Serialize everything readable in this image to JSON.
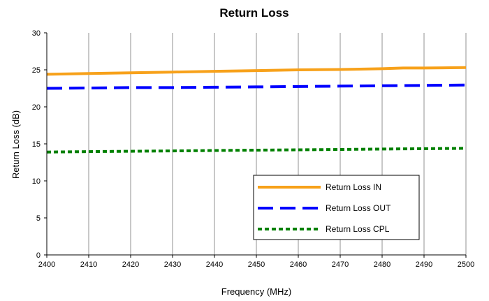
{
  "chart_data": {
    "type": "line",
    "title": "Return Loss",
    "xlabel": "Frequency (MHz)",
    "ylabel": "Return Loss (dB)",
    "xlim": [
      2400,
      2500
    ],
    "ylim": [
      0,
      30
    ],
    "xticks": [
      2400,
      2410,
      2420,
      2430,
      2440,
      2450,
      2460,
      2470,
      2480,
      2490,
      2500
    ],
    "yticks": [
      0,
      5,
      10,
      15,
      20,
      25,
      30
    ],
    "grid": "vertical",
    "legend": "lower-right",
    "series": [
      {
        "name": "Return Loss IN",
        "color": "#F7A11A",
        "style": "solid",
        "x": [
          2400,
          2410,
          2420,
          2430,
          2440,
          2450,
          2460,
          2470,
          2480,
          2485,
          2490,
          2500
        ],
        "values": [
          24.4,
          24.5,
          24.6,
          24.7,
          24.8,
          24.9,
          25.0,
          25.05,
          25.15,
          25.25,
          25.25,
          25.3
        ]
      },
      {
        "name": "Return Loss OUT",
        "color": "#0000FF",
        "style": "dashed",
        "x": [
          2400,
          2410,
          2420,
          2430,
          2440,
          2450,
          2460,
          2470,
          2480,
          2490,
          2500
        ],
        "values": [
          22.5,
          22.55,
          22.6,
          22.6,
          22.65,
          22.7,
          22.75,
          22.8,
          22.85,
          22.9,
          22.95
        ]
      },
      {
        "name": "Return Loss CPL",
        "color": "#008000",
        "style": "dotted",
        "x": [
          2400,
          2410,
          2420,
          2430,
          2440,
          2450,
          2460,
          2470,
          2480,
          2490,
          2500
        ],
        "values": [
          13.9,
          13.95,
          14.0,
          14.05,
          14.1,
          14.15,
          14.2,
          14.25,
          14.3,
          14.35,
          14.4
        ]
      }
    ]
  }
}
